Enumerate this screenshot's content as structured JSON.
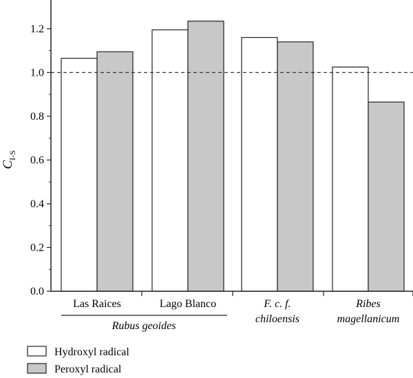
{
  "chart_data": {
    "type": "bar",
    "ylabel": "C",
    "ylabel_sub": "I-S",
    "ylim": [
      0,
      1.3
    ],
    "yticks": [
      "0.0",
      "0.2",
      "0.4",
      "0.6",
      "0.8",
      "1.0",
      "1.2"
    ],
    "reference_line": 1.0,
    "categories": [
      {
        "lines": [
          "Las Raices"
        ],
        "italic": [
          false
        ]
      },
      {
        "lines": [
          "Lago Blanco"
        ],
        "italic": [
          false
        ]
      },
      {
        "lines": [
          "F. c. f.",
          "chiloensis"
        ],
        "italic": [
          true,
          true
        ]
      },
      {
        "lines": [
          "Ribes",
          "magellanicum"
        ],
        "italic": [
          true,
          true
        ]
      }
    ],
    "group_label": "Rubus geoides",
    "series": [
      {
        "name": "Hydroxyl radical",
        "color": "#ffffff",
        "values": [
          1.065,
          1.195,
          1.16,
          1.025
        ]
      },
      {
        "name": "Peroxyl radical",
        "color": "#c8c8c8",
        "values": [
          1.095,
          1.235,
          1.14,
          0.865
        ]
      }
    ]
  }
}
